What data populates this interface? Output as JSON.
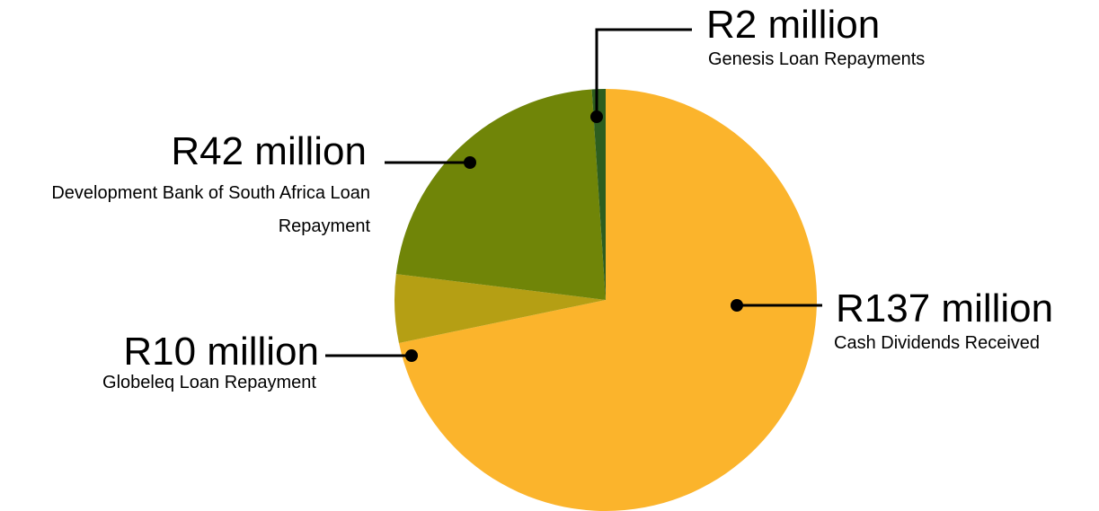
{
  "chart_data": {
    "type": "pie",
    "categories": [
      "Cash Dividends Received",
      "Globeleq Loan Repayment",
      "Development Bank of South Africa Loan Repayment",
      "Genesis Loan Repayments"
    ],
    "values": [
      137,
      10,
      42,
      2
    ],
    "value_labels": [
      "R137 million",
      "R10 million",
      "R42 million",
      "R2 million"
    ],
    "colors": [
      "#fbb42c",
      "#b59f14",
      "#708508",
      "#2d5e1f"
    ]
  }
}
